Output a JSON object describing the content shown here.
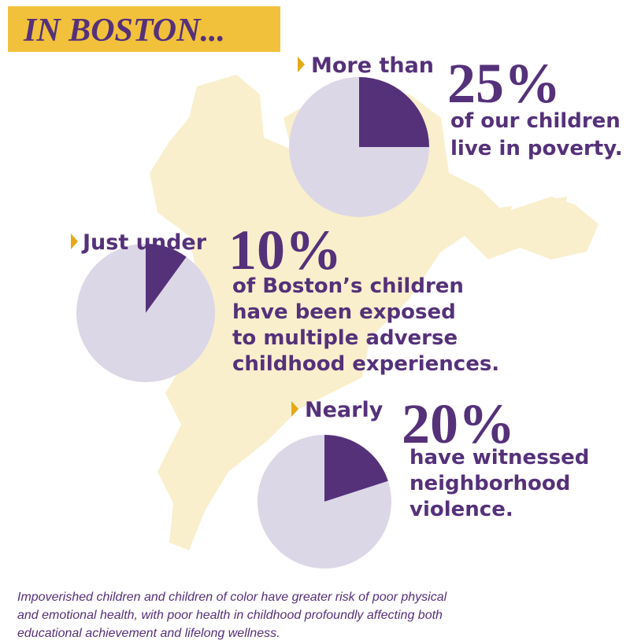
{
  "header": {
    "title": "IN BOSTON..."
  },
  "chart_data": [
    {
      "type": "pie",
      "lead": "More than",
      "values": [
        25,
        75
      ],
      "value_labels": [
        "25%",
        null
      ],
      "colors": [
        "#55317a",
        "#dcd7e6"
      ],
      "description": [
        "of our children",
        "live in poverty."
      ]
    },
    {
      "type": "pie",
      "lead": "Just under",
      "values": [
        10,
        90
      ],
      "value_labels": [
        "10%",
        null
      ],
      "colors": [
        "#55317a",
        "#dcd7e6"
      ],
      "description": [
        "of Boston’s children",
        "have been exposed",
        "to multiple adverse",
        "childhood experiences."
      ]
    },
    {
      "type": "pie",
      "lead": "Nearly",
      "values": [
        20,
        80
      ],
      "value_labels": [
        "20%",
        null
      ],
      "colors": [
        "#55317a",
        "#dcd7e6"
      ],
      "description": [
        "have witnessed",
        "neighborhood",
        "violence."
      ]
    }
  ],
  "footer": {
    "lines": [
      "Impoverished children and children of color have greater risk of poor physical",
      "and emotional health, with poor health in childhood profoundly affecting both",
      "educational achievement and lifelong wellness."
    ]
  }
}
